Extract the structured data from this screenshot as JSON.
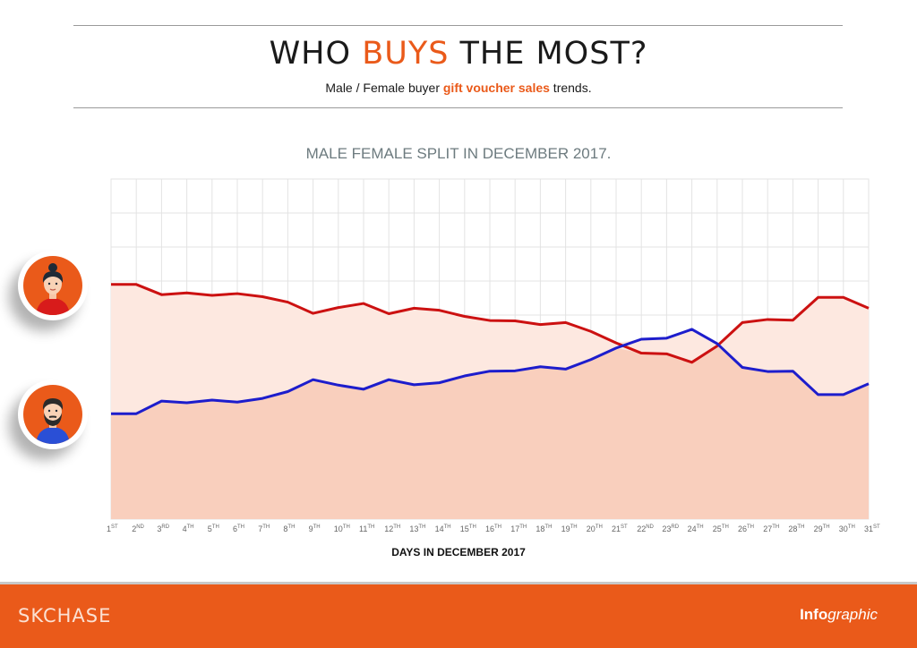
{
  "header": {
    "title_part1": "WHO ",
    "title_accent": "BUYS",
    "title_part2": " THE MOST?",
    "subtitle_part1": "Male / Female buyer ",
    "subtitle_accent": "gift voucher sales",
    "subtitle_part2": " trends."
  },
  "footer": {
    "brand": "SKCHASE",
    "tag_bold": "Info",
    "tag_italic": "graphic"
  },
  "icons": {
    "female": "female-avatar-icon",
    "male": "male-avatar-icon"
  },
  "colors": {
    "accent": "#ea5a1a",
    "female_line": "#cc1111",
    "male_line": "#1d1dcc",
    "area_light": "#fde8e0",
    "area_dark": "#f9cfbd",
    "title_gray": "#6d7b7f"
  },
  "chart_data": {
    "type": "line",
    "title": "MALE FEMALE SPLIT IN DECEMBER 2017.",
    "xlabel": "DAYS IN DECEMBER 2017",
    "ylabel": "",
    "ylim": [
      0,
      100
    ],
    "grid": true,
    "categories": [
      {
        "num": "1",
        "sup": "ST"
      },
      {
        "num": "2",
        "sup": "ND"
      },
      {
        "num": "3",
        "sup": "RD"
      },
      {
        "num": "4",
        "sup": "TH"
      },
      {
        "num": "5",
        "sup": "TH"
      },
      {
        "num": "6",
        "sup": "TH"
      },
      {
        "num": "7",
        "sup": "TH"
      },
      {
        "num": "8",
        "sup": "TH"
      },
      {
        "num": "9",
        "sup": "TH"
      },
      {
        "num": "10",
        "sup": "TH"
      },
      {
        "num": "11",
        "sup": "TH"
      },
      {
        "num": "12",
        "sup": "TH"
      },
      {
        "num": "13",
        "sup": "TH"
      },
      {
        "num": "14",
        "sup": "TH"
      },
      {
        "num": "15",
        "sup": "TH"
      },
      {
        "num": "16",
        "sup": "TH"
      },
      {
        "num": "17",
        "sup": "TH"
      },
      {
        "num": "18",
        "sup": "TH"
      },
      {
        "num": "19",
        "sup": "TH"
      },
      {
        "num": "20",
        "sup": "TH"
      },
      {
        "num": "21",
        "sup": "ST"
      },
      {
        "num": "22",
        "sup": "ND"
      },
      {
        "num": "23",
        "sup": "RD"
      },
      {
        "num": "24",
        "sup": "TH"
      },
      {
        "num": "25",
        "sup": "TH"
      },
      {
        "num": "26",
        "sup": "TH"
      },
      {
        "num": "27",
        "sup": "TH"
      },
      {
        "num": "28",
        "sup": "TH"
      },
      {
        "num": "29",
        "sup": "TH"
      },
      {
        "num": "30",
        "sup": "TH"
      },
      {
        "num": "31",
        "sup": "ST"
      }
    ],
    "series": [
      {
        "icon": "female-avatar-icon",
        "color": "#cc1111",
        "values": [
          69,
          69,
          66,
          66.5,
          65.8,
          66.3,
          65.4,
          63.8,
          60.5,
          62.2,
          63.4,
          60.4,
          62,
          61.4,
          59.6,
          58.4,
          58.3,
          57.2,
          57.8,
          55.2,
          51.8,
          48.8,
          48.6,
          46.1,
          50.9,
          57.8,
          58.7,
          58.5,
          65.2,
          65.2,
          62
        ]
      },
      {
        "icon": "male-avatar-icon",
        "color": "#1d1dcc",
        "values": [
          31,
          31,
          34.7,
          34.2,
          35,
          34.4,
          35.5,
          37.5,
          41,
          39.4,
          38.2,
          41,
          39.5,
          40.1,
          42.1,
          43.5,
          43.6,
          44.8,
          44.1,
          46.9,
          50.3,
          52.9,
          53.2,
          55.8,
          51.6,
          44.6,
          43.4,
          43.5,
          36.6,
          36.6,
          39.8
        ]
      }
    ]
  }
}
